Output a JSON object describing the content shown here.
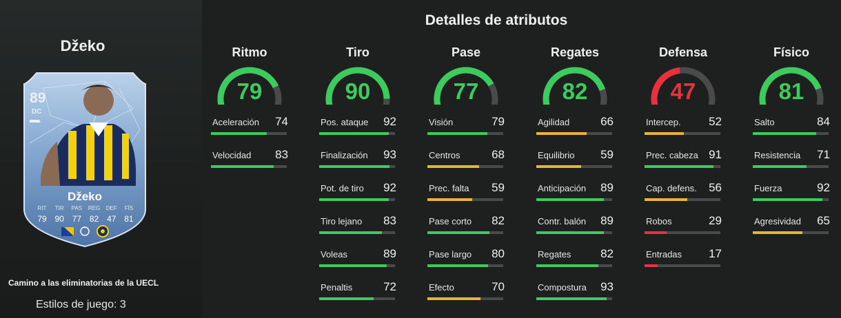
{
  "player": {
    "name": "Džeko",
    "card": {
      "rating": "89",
      "position": "DC",
      "name": "Džeko",
      "stat_labels": [
        "RIT",
        "TIR",
        "PAS",
        "REG",
        "DEF",
        "FÍS"
      ],
      "stat_values": [
        "79",
        "90",
        "77",
        "82",
        "47",
        "81"
      ]
    },
    "promo": "Camino a las eliminatorias de la UECL",
    "playstyles": "Estilos de juego: 3"
  },
  "details_title": "Detalles de atributos",
  "colors": {
    "green": "#3ecb5e",
    "yellow": "#e8b53a",
    "red": "#e8313f",
    "track": "#4a4a4a"
  },
  "categories": [
    {
      "name": "Ritmo",
      "value": 79,
      "level": "green",
      "attrs": [
        {
          "name": "Aceleración",
          "value": 74,
          "level": "green"
        },
        {
          "name": "Velocidad",
          "value": 83,
          "level": "green"
        }
      ]
    },
    {
      "name": "Tiro",
      "value": 90,
      "level": "green",
      "attrs": [
        {
          "name": "Pos. ataque",
          "value": 92,
          "level": "green"
        },
        {
          "name": "Finalización",
          "value": 93,
          "level": "green"
        },
        {
          "name": "Pot. de tiro",
          "value": 92,
          "level": "green"
        },
        {
          "name": "Tiro lejano",
          "value": 83,
          "level": "green"
        },
        {
          "name": "Voleas",
          "value": 89,
          "level": "green"
        },
        {
          "name": "Penaltis",
          "value": 72,
          "level": "green"
        }
      ]
    },
    {
      "name": "Pase",
      "value": 77,
      "level": "green",
      "attrs": [
        {
          "name": "Visión",
          "value": 79,
          "level": "green"
        },
        {
          "name": "Centros",
          "value": 68,
          "level": "yellow"
        },
        {
          "name": "Prec. falta",
          "value": 59,
          "level": "yellow"
        },
        {
          "name": "Pase corto",
          "value": 82,
          "level": "green"
        },
        {
          "name": "Pase largo",
          "value": 80,
          "level": "green"
        },
        {
          "name": "Efecto",
          "value": 70,
          "level": "yellow"
        }
      ]
    },
    {
      "name": "Regates",
      "value": 82,
      "level": "green",
      "attrs": [
        {
          "name": "Agilidad",
          "value": 66,
          "level": "yellow"
        },
        {
          "name": "Equilibrio",
          "value": 59,
          "level": "yellow"
        },
        {
          "name": "Anticipación",
          "value": 89,
          "level": "green"
        },
        {
          "name": "Contr. balón",
          "value": 89,
          "level": "green"
        },
        {
          "name": "Regates",
          "value": 82,
          "level": "green"
        },
        {
          "name": "Compostura",
          "value": 93,
          "level": "green"
        }
      ]
    },
    {
      "name": "Defensa",
      "value": 47,
      "level": "red",
      "attrs": [
        {
          "name": "Intercep.",
          "value": 52,
          "level": "yellow"
        },
        {
          "name": "Prec. cabeza",
          "value": 91,
          "level": "green"
        },
        {
          "name": "Cap. defens.",
          "value": 56,
          "level": "yellow"
        },
        {
          "name": "Robos",
          "value": 29,
          "level": "red"
        },
        {
          "name": "Entradas",
          "value": 17,
          "level": "red"
        }
      ]
    },
    {
      "name": "Físico",
      "value": 81,
      "level": "green",
      "attrs": [
        {
          "name": "Salto",
          "value": 84,
          "level": "green"
        },
        {
          "name": "Resistencia",
          "value": 71,
          "level": "green"
        },
        {
          "name": "Fuerza",
          "value": 92,
          "level": "green"
        },
        {
          "name": "Agresividad",
          "value": 65,
          "level": "yellow"
        }
      ]
    }
  ]
}
